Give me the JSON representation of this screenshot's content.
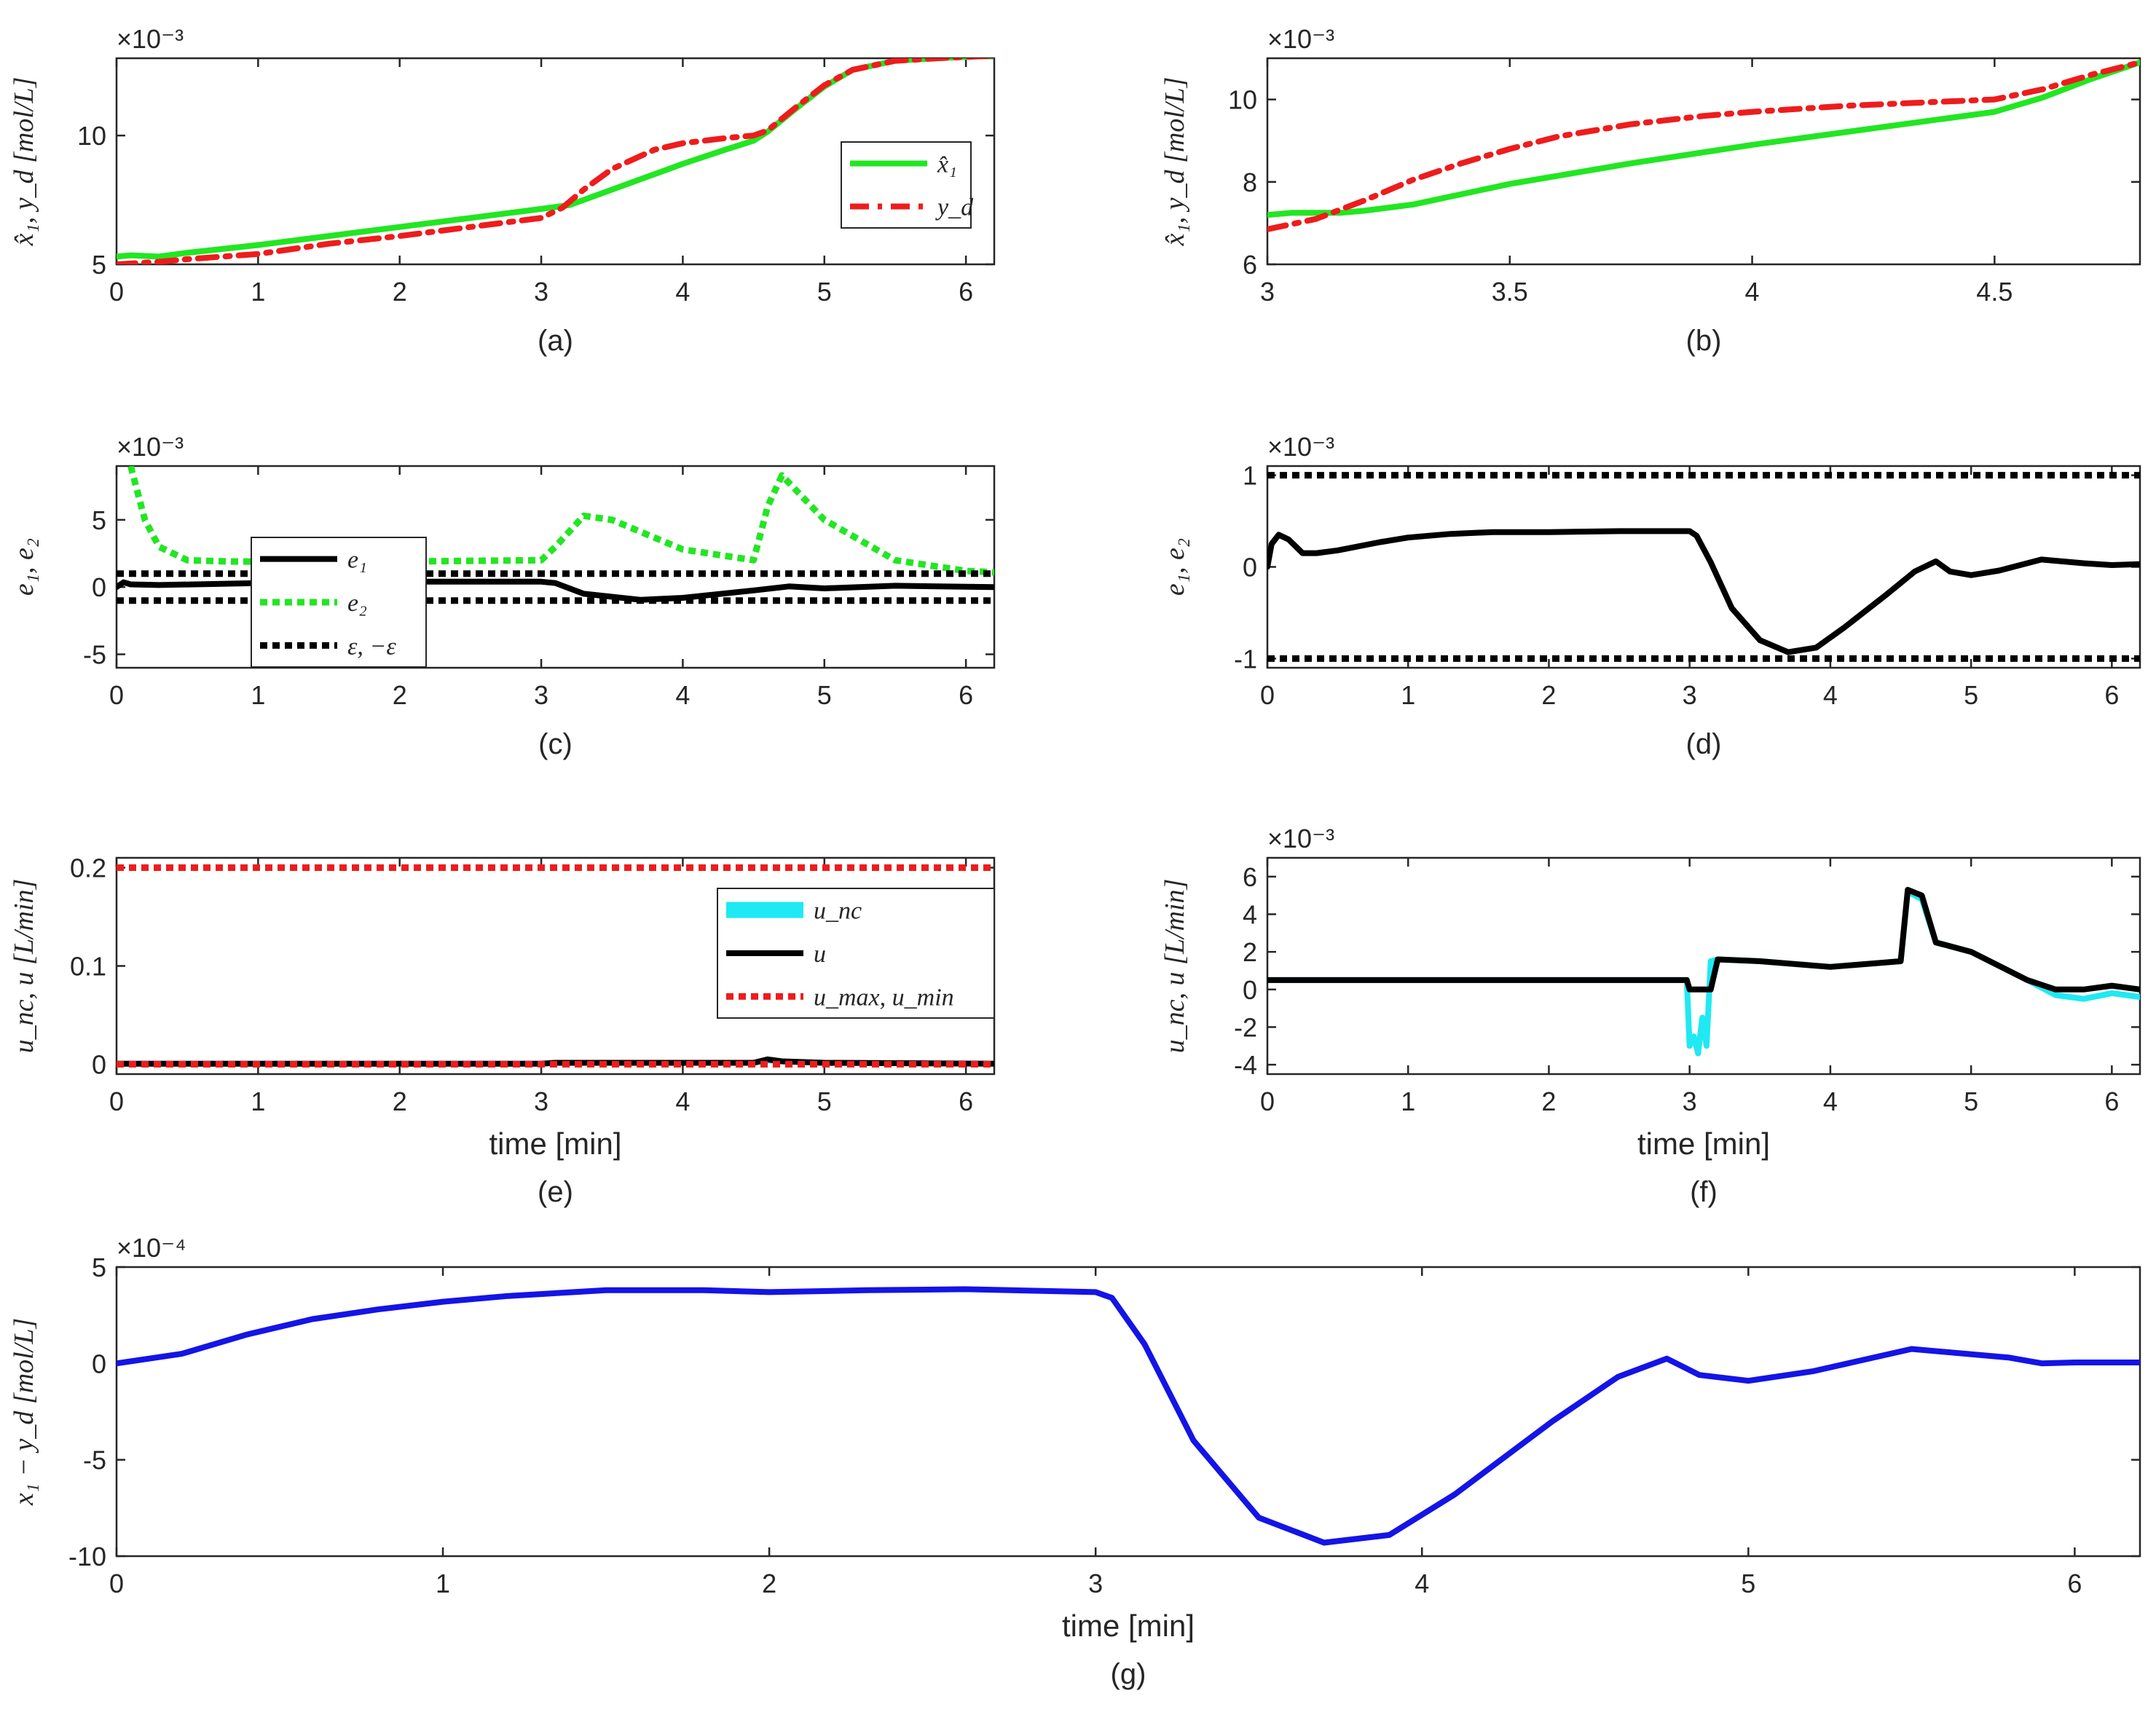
{
  "figure": {
    "colors": {
      "green": "#22e622",
      "red": "#ee1c1c",
      "black": "#000000",
      "cyan": "#1fe9f2",
      "blue": "#1414e6"
    }
  },
  "chart_data": [
    {
      "id": "a",
      "type": "line",
      "caption": "(a)",
      "title": "",
      "xlabel": "",
      "ylabel": "x̂₁, y_d  [mol/L]",
      "multiplier": "×10⁻³",
      "xlim": [
        0,
        6.2
      ],
      "ylim": [
        5,
        13
      ],
      "xticks": [
        "0",
        "1",
        "2",
        "3",
        "4",
        "5",
        "6"
      ],
      "yticks": [
        "5",
        "10"
      ],
      "legend_position": "right",
      "series": [
        {
          "name": "x̂₁",
          "color": "green",
          "style": "solid",
          "x": [
            0,
            0.1,
            0.3,
            0.5,
            1,
            1.5,
            2,
            2.5,
            3,
            3.2,
            3.5,
            3.8,
            4,
            4.3,
            4.5,
            4.6,
            4.8,
            5,
            5.2,
            5.5,
            5.8,
            6,
            6.2
          ],
          "y": [
            5.3,
            5.35,
            5.3,
            5.45,
            5.75,
            6.1,
            6.45,
            6.8,
            7.15,
            7.3,
            7.9,
            8.5,
            8.9,
            9.45,
            9.8,
            10.15,
            11.05,
            11.9,
            12.55,
            12.9,
            13.0,
            13.05,
            13.1
          ]
        },
        {
          "name": "y_d",
          "color": "red",
          "style": "dashdot",
          "x": [
            0,
            0.3,
            0.5,
            1,
            1.5,
            2,
            2.5,
            3,
            3.15,
            3.3,
            3.5,
            3.8,
            4,
            4.3,
            4.5,
            4.6,
            4.8,
            5,
            5.2,
            5.5,
            5.8,
            6,
            6.2
          ],
          "y": [
            5.0,
            5.1,
            5.2,
            5.4,
            5.8,
            6.1,
            6.45,
            6.8,
            7.2,
            7.9,
            8.7,
            9.45,
            9.7,
            9.9,
            10.0,
            10.2,
            11.1,
            11.95,
            12.55,
            12.9,
            13.0,
            13.05,
            13.1
          ]
        }
      ]
    },
    {
      "id": "b",
      "type": "line",
      "caption": "(b)",
      "title": "",
      "xlabel": "",
      "ylabel": "x̂₁, y_d  [mol/L]",
      "multiplier": "×10⁻³",
      "xlim": [
        3,
        4.8
      ],
      "ylim": [
        6,
        11
      ],
      "xticks": [
        "3",
        "3.5",
        "4",
        "4.5"
      ],
      "yticks": [
        "6",
        "8",
        "10"
      ],
      "series": [
        {
          "name": "x̂₁",
          "color": "green",
          "style": "solid",
          "x": [
            3,
            3.05,
            3.1,
            3.15,
            3.2,
            3.3,
            3.5,
            3.75,
            4,
            4.25,
            4.5,
            4.6,
            4.7,
            4.8
          ],
          "y": [
            7.2,
            7.25,
            7.25,
            7.25,
            7.3,
            7.45,
            7.95,
            8.45,
            8.9,
            9.3,
            9.7,
            10.05,
            10.5,
            10.9
          ]
        },
        {
          "name": "y_d",
          "color": "red",
          "style": "dashdot",
          "x": [
            3,
            3.1,
            3.2,
            3.3,
            3.4,
            3.5,
            3.6,
            3.75,
            3.9,
            4,
            4.2,
            4.4,
            4.5,
            4.6,
            4.7,
            4.8
          ],
          "y": [
            6.85,
            7.1,
            7.55,
            8.05,
            8.45,
            8.8,
            9.1,
            9.4,
            9.6,
            9.7,
            9.85,
            9.95,
            10.0,
            10.25,
            10.6,
            10.9
          ]
        }
      ]
    },
    {
      "id": "c",
      "type": "line",
      "caption": "(c)",
      "title": "",
      "xlabel": "",
      "ylabel": "e₁, e₂",
      "multiplier": "×10⁻³",
      "xlim": [
        0,
        6.2
      ],
      "ylim": [
        -6,
        9
      ],
      "xticks": [
        "0",
        "1",
        "2",
        "3",
        "4",
        "5",
        "6"
      ],
      "yticks": [
        "-5",
        "0",
        "5"
      ],
      "legend_position": "center-left",
      "series": [
        {
          "name": "e₁",
          "color": "black",
          "style": "solid",
          "x": [
            0,
            0.05,
            0.1,
            0.3,
            1,
            2,
            3,
            3.1,
            3.3,
            3.7,
            4,
            4.5,
            4.75,
            5,
            5.5,
            6.2
          ],
          "y": [
            0,
            0.35,
            0.2,
            0.15,
            0.3,
            0.4,
            0.4,
            0.3,
            -0.5,
            -0.95,
            -0.8,
            -0.25,
            0.05,
            -0.1,
            0.1,
            0.0
          ]
        },
        {
          "name": "e₂",
          "color": "green",
          "style": "dotted",
          "x": [
            0.1,
            0.2,
            0.3,
            0.5,
            0.8,
            1,
            2,
            3,
            3.1,
            3.3,
            3.5,
            4,
            4.5,
            4.6,
            4.7,
            5,
            5.5,
            6,
            6.2
          ],
          "y": [
            9,
            5,
            3,
            2,
            1.9,
            1.9,
            1.9,
            2,
            3,
            5.3,
            5,
            2.8,
            2,
            6,
            8.3,
            5,
            2,
            1.2,
            1.1
          ]
        },
        {
          "name": "ε, −ε",
          "color": "black",
          "style": "dotted",
          "x": [
            0,
            6.2
          ],
          "y": [
            1,
            1
          ],
          "x2": [
            0,
            6.2
          ],
          "y2": [
            -1,
            -1
          ]
        }
      ]
    },
    {
      "id": "d",
      "type": "line",
      "caption": "(d)",
      "title": "",
      "xlabel": "",
      "ylabel": "e₁, e₂",
      "multiplier": "×10⁻³",
      "xlim": [
        0,
        6.2
      ],
      "ylim": [
        -1.1,
        1.1
      ],
      "xticks": [
        "0",
        "1",
        "2",
        "3",
        "4",
        "5",
        "6"
      ],
      "yticks": [
        "-1",
        "0",
        "1"
      ],
      "series": [
        {
          "name": "e₁",
          "color": "black",
          "style": "solid",
          "x": [
            0,
            0.03,
            0.08,
            0.15,
            0.25,
            0.35,
            0.5,
            0.8,
            1,
            1.3,
            1.6,
            2,
            2.5,
            3,
            3.05,
            3.15,
            3.3,
            3.5,
            3.7,
            3.9,
            4.1,
            4.4,
            4.6,
            4.75,
            4.85,
            5,
            5.2,
            5.5,
            5.8,
            6,
            6.2
          ],
          "y": [
            0,
            0.25,
            0.35,
            0.3,
            0.15,
            0.15,
            0.18,
            0.27,
            0.32,
            0.36,
            0.38,
            0.38,
            0.39,
            0.39,
            0.34,
            0.05,
            -0.45,
            -0.8,
            -0.93,
            -0.88,
            -0.66,
            -0.3,
            -0.05,
            0.06,
            -0.05,
            -0.09,
            -0.04,
            0.08,
            0.04,
            0.02,
            0.03
          ]
        },
        {
          "name": "ε",
          "color": "black",
          "style": "dotted",
          "x": [
            0,
            6.2
          ],
          "y": [
            1,
            1
          ]
        },
        {
          "name": "−ε",
          "color": "black",
          "style": "dotted",
          "x": [
            0,
            6.2
          ],
          "y": [
            -1,
            -1
          ]
        }
      ]
    },
    {
      "id": "e",
      "type": "line",
      "caption": "(e)",
      "title": "",
      "xlabel": "time [min]",
      "ylabel": "u_nc, u  [L/min]",
      "multiplier": "",
      "xlim": [
        0,
        6.2
      ],
      "ylim": [
        -0.01,
        0.21
      ],
      "xticks": [
        "0",
        "1",
        "2",
        "3",
        "4",
        "5",
        "6"
      ],
      "yticks": [
        "0",
        "0.1",
        "0.2"
      ],
      "legend_position": "right",
      "series": [
        {
          "name": "u_nc",
          "color": "cyan",
          "style": "solid",
          "x": [
            0,
            3,
            3.1,
            4.5,
            4.6,
            4.7,
            5,
            6.2
          ],
          "y": [
            0.0005,
            0.0005,
            0.0015,
            0.0015,
            0.004,
            0.003,
            0.0015,
            0.0005
          ]
        },
        {
          "name": "u",
          "color": "black",
          "style": "solid",
          "x": [
            0,
            3,
            3.1,
            4.5,
            4.6,
            4.7,
            5,
            6.2
          ],
          "y": [
            0.0005,
            0.0005,
            0.0015,
            0.0015,
            0.005,
            0.003,
            0.0015,
            0.0005
          ]
        },
        {
          "name": "u_max, u_min",
          "color": "red",
          "style": "dotted",
          "x": [
            0,
            6.2
          ],
          "y": [
            0.2,
            0.2
          ],
          "x2": [
            0,
            6.2
          ],
          "y2": [
            0,
            0
          ]
        }
      ]
    },
    {
      "id": "f",
      "type": "line",
      "caption": "(f)",
      "title": "",
      "xlabel": "time [min]",
      "ylabel": "u_nc, u  [L/min]",
      "multiplier": "×10⁻³",
      "xlim": [
        0,
        6.2
      ],
      "ylim": [
        -4.5,
        7
      ],
      "xticks": [
        "0",
        "1",
        "2",
        "3",
        "4",
        "5",
        "6"
      ],
      "yticks": [
        "-4",
        "-2",
        "0",
        "2",
        "4",
        "6"
      ],
      "series": [
        {
          "name": "u_nc",
          "color": "cyan",
          "style": "solid",
          "x": [
            0,
            2.98,
            3.0,
            3.03,
            3.06,
            3.09,
            3.12,
            3.15,
            3.2,
            3.5,
            4,
            4.5,
            4.55,
            4.65,
            4.75,
            5,
            5.4,
            5.6,
            5.8,
            6,
            6.2
          ],
          "y": [
            0.5,
            0.5,
            -3,
            -2.5,
            -3.4,
            -1.5,
            -3,
            1.5,
            1.6,
            1.5,
            1.2,
            1.5,
            5.2,
            4.8,
            2.5,
            2,
            0.5,
            -0.3,
            -0.5,
            -0.2,
            -0.4
          ]
        },
        {
          "name": "u",
          "color": "black",
          "style": "solid",
          "x": [
            0,
            2.98,
            3.0,
            3.15,
            3.2,
            3.5,
            4,
            4.5,
            4.55,
            4.65,
            4.75,
            5,
            5.4,
            5.6,
            5.8,
            6,
            6.2
          ],
          "y": [
            0.5,
            0.5,
            0,
            0,
            1.6,
            1.5,
            1.2,
            1.5,
            5.3,
            5.0,
            2.5,
            2,
            0.5,
            0,
            0,
            0.2,
            0
          ]
        }
      ]
    },
    {
      "id": "g",
      "type": "line",
      "caption": "(g)",
      "title": "",
      "xlabel": "time [min]",
      "ylabel": "x₁ − y_d  [mol/L]",
      "multiplier": "×10⁻⁴",
      "xlim": [
        0,
        6.2
      ],
      "ylim": [
        -10,
        5
      ],
      "xticks": [
        "0",
        "1",
        "2",
        "3",
        "4",
        "5",
        "6"
      ],
      "yticks": [
        "-10",
        "-5",
        "0",
        "5"
      ],
      "series": [
        {
          "name": "x₁ − y_d",
          "color": "blue",
          "style": "solid",
          "x": [
            0,
            0.2,
            0.4,
            0.6,
            0.8,
            1,
            1.2,
            1.5,
            1.8,
            2,
            2.3,
            2.6,
            3,
            3.05,
            3.15,
            3.3,
            3.5,
            3.7,
            3.9,
            4.1,
            4.4,
            4.6,
            4.75,
            4.85,
            5,
            5.2,
            5.5,
            5.8,
            5.9,
            6,
            6.2
          ],
          "y": [
            0,
            0.5,
            1.5,
            2.3,
            2.8,
            3.2,
            3.5,
            3.8,
            3.8,
            3.7,
            3.8,
            3.85,
            3.7,
            3.4,
            1,
            -4,
            -8,
            -9.3,
            -8.9,
            -6.8,
            -3,
            -0.7,
            0.25,
            -0.6,
            -0.9,
            -0.4,
            0.75,
            0.3,
            0,
            0.05,
            0.05
          ]
        }
      ]
    }
  ]
}
